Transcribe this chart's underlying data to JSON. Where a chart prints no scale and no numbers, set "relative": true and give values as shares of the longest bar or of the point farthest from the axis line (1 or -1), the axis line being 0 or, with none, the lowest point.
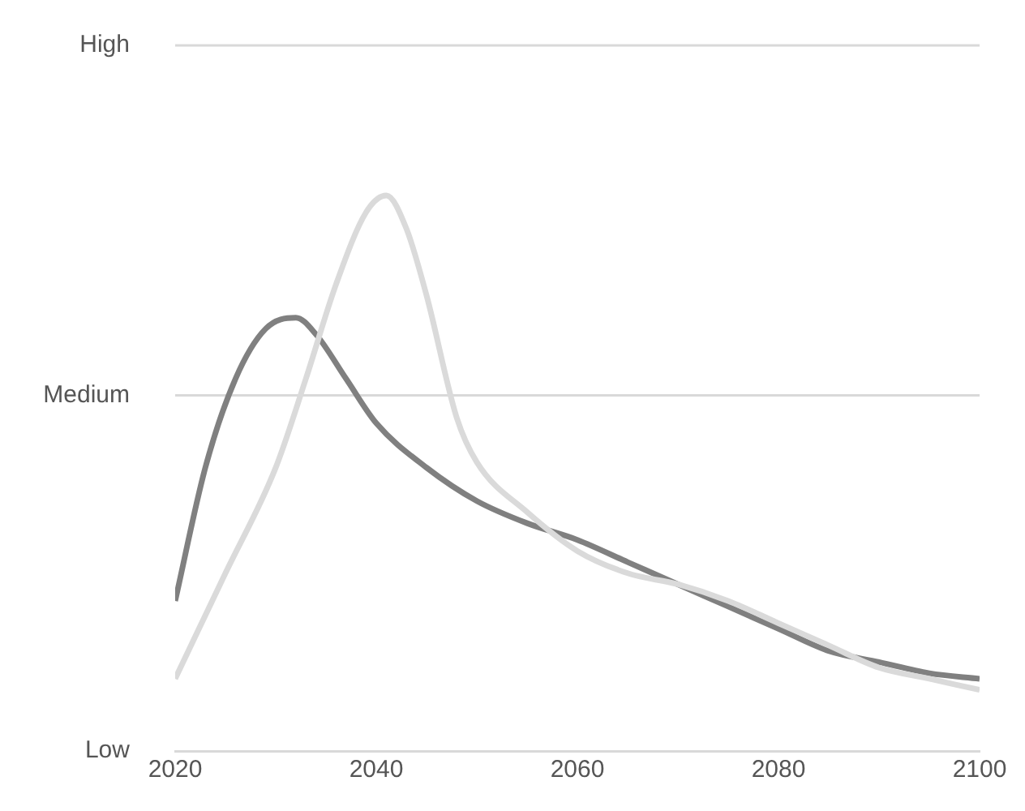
{
  "chart_data": {
    "type": "line",
    "relative": true,
    "xlim": [
      2020,
      2100
    ],
    "xticks": [
      2020,
      2040,
      2060,
      2080,
      2100
    ],
    "marker": "none",
    "line_style": "solid",
    "annotations": [
      "Low"
    ],
    "ref_lines": [
      {
        "axis": "y",
        "value": 0.64,
        "label": "Medium",
        "color": "#d9d9d9"
      },
      {
        "axis": "y",
        "value": 1.27,
        "label": "High",
        "color": "#d9d9d9"
      }
    ],
    "series": [
      {
        "color": "#dadada",
        "x": [
          2020,
          2025,
          2030,
          2033,
          2036,
          2039,
          2041,
          2043,
          2045,
          2048,
          2050,
          2055,
          2060,
          2065,
          2070,
          2075,
          2080,
          2085,
          2090,
          2095,
          2100
        ],
        "values": [
          0.13,
          0.32,
          0.51,
          0.67,
          0.84,
          0.97,
          1,
          0.94,
          0.82,
          0.6,
          0.52,
          0.43,
          0.36,
          0.32,
          0.3,
          0.27,
          0.23,
          0.19,
          0.15,
          0.13,
          0.11
        ]
      },
      {
        "color": "#808080",
        "x": [
          2020,
          2023,
          2026,
          2029,
          2032,
          2034,
          2037,
          2040,
          2045,
          2050,
          2055,
          2060,
          2065,
          2070,
          2075,
          2080,
          2085,
          2090,
          2095,
          2100
        ],
        "values": [
          0.27,
          0.51,
          0.67,
          0.76,
          0.78,
          0.75,
          0.67,
          0.59,
          0.51,
          0.45,
          0.41,
          0.38,
          0.34,
          0.3,
          0.26,
          0.22,
          0.18,
          0.16,
          0.14,
          0.13
        ]
      }
    ]
  }
}
